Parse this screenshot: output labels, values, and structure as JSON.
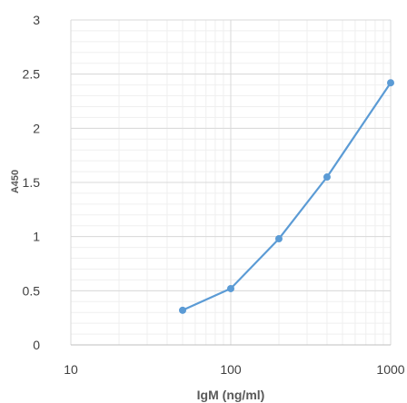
{
  "chart_data": {
    "type": "line",
    "xlabel": "IgM (ng/ml)",
    "ylabel": "A450",
    "xscale": "log",
    "xlim": [
      10,
      1000
    ],
    "ylim": [
      0,
      3
    ],
    "xticks": [
      10,
      100,
      1000
    ],
    "xtick_labels": [
      "10",
      "100",
      "1000"
    ],
    "yticks": [
      0,
      0.5,
      1,
      1.5,
      2,
      2.5,
      3
    ],
    "ytick_labels": [
      "0",
      "0.5",
      "1",
      "1.5",
      "2",
      "2.5",
      "3"
    ],
    "grid": true,
    "legend": "none",
    "series": [
      {
        "color": "#5b9bd5",
        "x": [
          50,
          100,
          200,
          400,
          1000
        ],
        "y": [
          0.32,
          0.52,
          0.98,
          1.55,
          2.42
        ]
      }
    ]
  }
}
